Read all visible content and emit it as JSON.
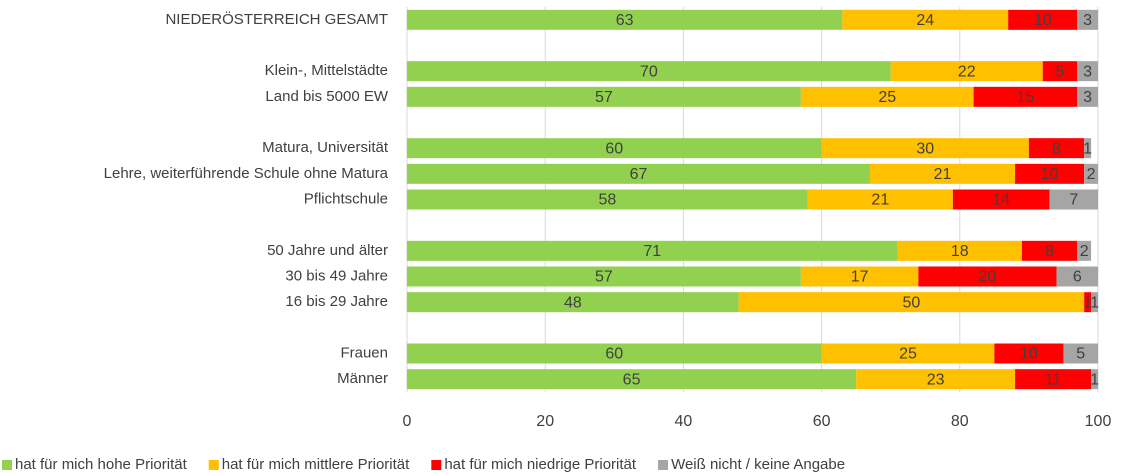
{
  "chart_data": {
    "type": "bar",
    "orientation": "horizontal",
    "stacked": true,
    "categories": [
      "NIEDERÖSTERREICH GESAMT",
      null,
      "Klein-, Mittelstädte",
      "Land bis 5000 EW",
      null,
      "Matura, Universität",
      "Lehre, weiterführende Schule ohne Matura",
      "Pflichtschule",
      null,
      "50 Jahre und älter",
      "30 bis 49 Jahre",
      "16 bis 29 Jahre",
      null,
      "Frauen",
      "Männer"
    ],
    "series": [
      {
        "name": "hat für mich hohe Priorität",
        "color": "#92d050",
        "values": [
          63,
          null,
          70,
          57,
          null,
          60,
          67,
          58,
          null,
          71,
          57,
          48,
          null,
          60,
          65
        ]
      },
      {
        "name": "hat für mich mittlere Priorität",
        "color": "#ffc000",
        "values": [
          24,
          null,
          22,
          25,
          null,
          30,
          21,
          21,
          null,
          18,
          17,
          50,
          null,
          25,
          23
        ]
      },
      {
        "name": "hat für mich niedrige Priorität",
        "color": "#ff0000",
        "values": [
          10,
          null,
          5,
          15,
          null,
          8,
          10,
          14,
          null,
          8,
          20,
          1,
          null,
          10,
          11
        ]
      },
      {
        "name": "Weiß nicht / keine Angabe",
        "color": "#a5a5a5",
        "values": [
          3,
          null,
          3,
          3,
          null,
          1,
          2,
          7,
          null,
          2,
          6,
          1,
          null,
          5,
          1
        ]
      }
    ],
    "xlim": [
      0,
      100
    ],
    "xticks": [
      0,
      20,
      40,
      60,
      80,
      100
    ],
    "grid": true,
    "legend": "bottom"
  }
}
